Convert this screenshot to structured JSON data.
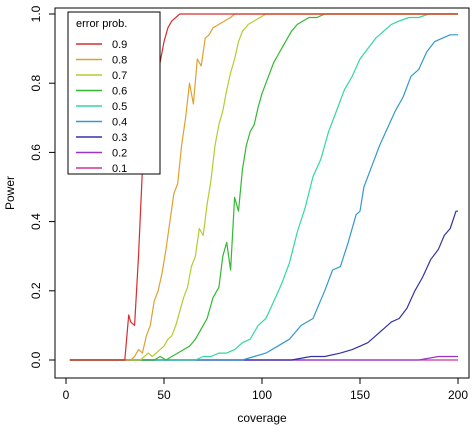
{
  "chart_data": {
    "type": "line",
    "title": "",
    "xlabel": "coverage",
    "ylabel": "Power",
    "xlim": [
      0,
      200
    ],
    "ylim": [
      0,
      1
    ],
    "xticks": [
      0,
      50,
      100,
      150,
      200
    ],
    "yticks": [
      0.0,
      0.2,
      0.4,
      0.6,
      0.8,
      1.0
    ],
    "xtick_labels": [
      "0",
      "50",
      "100",
      "150",
      "200"
    ],
    "ytick_labels": [
      "0.0",
      "0.2",
      "0.4",
      "0.6",
      "0.8",
      "1.0"
    ],
    "grid": false,
    "legend": {
      "title": "error prob.",
      "position": "top-left"
    },
    "series": [
      {
        "name": "0.9",
        "color": "#d62e2e",
        "x": [
          2,
          30,
          32,
          33,
          35,
          37,
          39,
          40,
          42,
          44,
          46,
          48,
          50,
          52,
          54,
          56,
          58,
          60,
          62,
          200
        ],
        "y": [
          0.0,
          0.0,
          0.13,
          0.11,
          0.1,
          0.3,
          0.55,
          0.56,
          0.68,
          0.8,
          0.85,
          0.86,
          0.92,
          0.96,
          0.98,
          0.99,
          1.0,
          1.0,
          1.0,
          1.0
        ]
      },
      {
        "name": "0.8",
        "color": "#e0a030",
        "x": [
          2,
          33,
          35,
          37,
          39,
          41,
          43,
          45,
          47,
          49,
          51,
          53,
          55,
          57,
          59,
          61,
          63,
          65,
          67,
          69,
          71,
          73,
          75,
          78,
          81,
          84,
          86,
          88,
          200
        ],
        "y": [
          0.0,
          0.0,
          0.01,
          0.03,
          0.02,
          0.07,
          0.1,
          0.17,
          0.2,
          0.25,
          0.32,
          0.4,
          0.48,
          0.51,
          0.62,
          0.7,
          0.8,
          0.74,
          0.87,
          0.85,
          0.93,
          0.94,
          0.96,
          0.97,
          0.98,
          0.99,
          1.0,
          1.0,
          1.0
        ]
      },
      {
        "name": "0.7",
        "color": "#b3cc33",
        "x": [
          2,
          38,
          40,
          42,
          44,
          46,
          48,
          50,
          52,
          54,
          56,
          58,
          60,
          62,
          64,
          66,
          68,
          70,
          72,
          74,
          76,
          78,
          80,
          82,
          84,
          86,
          88,
          90,
          93,
          96,
          99,
          102,
          105,
          108,
          112,
          200
        ],
        "y": [
          0.0,
          0.0,
          0.01,
          0.02,
          0.01,
          0.02,
          0.03,
          0.04,
          0.06,
          0.07,
          0.1,
          0.14,
          0.18,
          0.21,
          0.27,
          0.3,
          0.38,
          0.36,
          0.45,
          0.52,
          0.62,
          0.68,
          0.72,
          0.78,
          0.83,
          0.87,
          0.92,
          0.95,
          0.97,
          0.98,
          0.99,
          1.0,
          1.0,
          1.0,
          1.0,
          1.0
        ]
      },
      {
        "name": "0.6",
        "color": "#33b833",
        "x": [
          2,
          45,
          48,
          51,
          54,
          57,
          60,
          63,
          66,
          69,
          72,
          75,
          78,
          80,
          82,
          84,
          86,
          88,
          90,
          92,
          94,
          96,
          98,
          100,
          102,
          104,
          106,
          108,
          110,
          112,
          115,
          118,
          121,
          124,
          128,
          132,
          136,
          140,
          200
        ],
        "y": [
          0.0,
          0.0,
          0.01,
          0.0,
          0.01,
          0.02,
          0.03,
          0.04,
          0.06,
          0.09,
          0.12,
          0.18,
          0.21,
          0.3,
          0.34,
          0.26,
          0.47,
          0.43,
          0.55,
          0.62,
          0.66,
          0.68,
          0.73,
          0.77,
          0.8,
          0.83,
          0.86,
          0.88,
          0.9,
          0.92,
          0.95,
          0.97,
          0.98,
          0.99,
          0.99,
          1.0,
          1.0,
          1.0,
          1.0
        ]
      },
      {
        "name": "0.5",
        "color": "#33d6a6",
        "x": [
          2,
          62,
          66,
          70,
          74,
          78,
          82,
          86,
          90,
          94,
          98,
          102,
          106,
          110,
          114,
          118,
          122,
          126,
          130,
          134,
          138,
          142,
          146,
          150,
          154,
          158,
          162,
          166,
          170,
          175,
          180,
          185,
          190,
          200
        ],
        "y": [
          0.0,
          0.0,
          0.0,
          0.01,
          0.01,
          0.02,
          0.02,
          0.03,
          0.05,
          0.06,
          0.1,
          0.12,
          0.17,
          0.22,
          0.28,
          0.37,
          0.44,
          0.53,
          0.58,
          0.66,
          0.72,
          0.78,
          0.82,
          0.87,
          0.9,
          0.93,
          0.95,
          0.97,
          0.98,
          0.99,
          0.99,
          1.0,
          1.0,
          1.0
        ]
      },
      {
        "name": "0.4",
        "color": "#3399cc",
        "x": [
          2,
          90,
          96,
          102,
          108,
          114,
          120,
          126,
          132,
          136,
          140,
          144,
          148,
          150,
          152,
          156,
          160,
          164,
          168,
          172,
          176,
          180,
          184,
          188,
          192,
          196,
          200
        ],
        "y": [
          0.0,
          0.0,
          0.01,
          0.02,
          0.04,
          0.06,
          0.1,
          0.12,
          0.2,
          0.26,
          0.27,
          0.34,
          0.42,
          0.43,
          0.5,
          0.56,
          0.62,
          0.67,
          0.72,
          0.76,
          0.82,
          0.84,
          0.89,
          0.92,
          0.93,
          0.94,
          0.94
        ]
      },
      {
        "name": "0.3",
        "color": "#3333a6",
        "x": [
          2,
          115,
          125,
          132,
          140,
          146,
          150,
          154,
          158,
          162,
          166,
          170,
          174,
          178,
          182,
          186,
          190,
          193,
          196,
          199,
          200
        ],
        "y": [
          0.0,
          0.0,
          0.01,
          0.01,
          0.02,
          0.03,
          0.04,
          0.05,
          0.07,
          0.09,
          0.11,
          0.12,
          0.15,
          0.2,
          0.24,
          0.29,
          0.32,
          0.36,
          0.38,
          0.43,
          0.43
        ]
      },
      {
        "name": "0.2",
        "color": "#9933cc",
        "x": [
          2,
          150,
          170,
          180,
          190,
          195,
          200
        ],
        "y": [
          0.0,
          0.0,
          0.0,
          0.0,
          0.01,
          0.01,
          0.01
        ]
      },
      {
        "name": "0.1",
        "color": "#cc3399",
        "x": [
          2,
          200
        ],
        "y": [
          0.0,
          0.0
        ]
      }
    ]
  }
}
